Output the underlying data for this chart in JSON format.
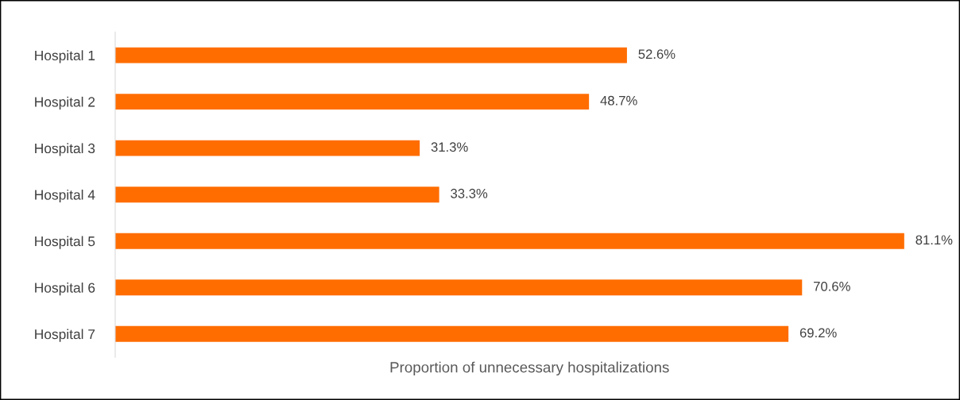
{
  "chart_data": {
    "type": "bar",
    "orientation": "horizontal",
    "xlabel": "Proportion of unnecessary hospitalizations",
    "categories": [
      "Hospital 1",
      "Hospital 2",
      "Hospital 3",
      "Hospital 4",
      "Hospital 5",
      "Hospital 6",
      "Hospital 7"
    ],
    "values": [
      52.6,
      48.7,
      31.3,
      33.3,
      81.1,
      70.6,
      69.2
    ],
    "value_labels": [
      "52.6%",
      "48.7%",
      "31.3%",
      "33.3%",
      "81.1%",
      "70.6%",
      "69.2%"
    ],
    "color": "#ff6d00",
    "tick_labels": "y",
    "grid": false,
    "legend": false
  }
}
